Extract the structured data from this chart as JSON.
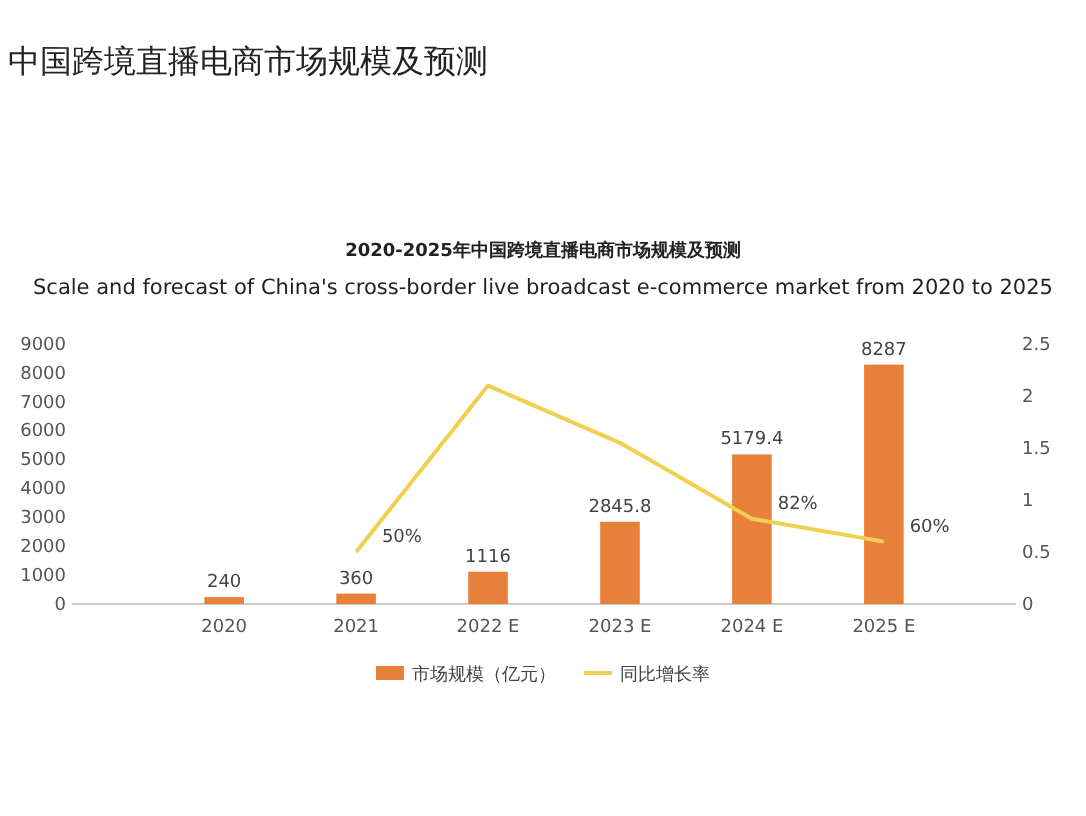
{
  "chart_data": {
    "type": "bar",
    "title": "中国跨境直播电商市场规模及预测",
    "subtitle": "2020-2025年中国跨境直播电商市场规模及预测\nScale and forecast of China's cross-border live broadcast e-commerce market from 2020 to 2025",
    "categories": [
      "2020",
      "2021",
      "2022 E",
      "2023 E",
      "2024 E",
      "2025 E"
    ],
    "series": [
      {
        "name": "市场规模（亿元）",
        "color": "#e8803a",
        "values": [
          240,
          360,
          1116,
          2845.8,
          5179.4,
          8287
        ],
        "data_labels": true
      },
      {
        "name": "同比增长率",
        "type": "line",
        "axis": "y2",
        "color": "#f0d050",
        "values": [
          null,
          0.5,
          2.1,
          1.55,
          0.82,
          0.6
        ],
        "value_labels": [
          null,
          "50%",
          null,
          null,
          "82%",
          "60%"
        ]
      }
    ],
    "ylim": [
      0,
      9000
    ],
    "yticks": [
      0,
      1000,
      2000,
      3000,
      4000,
      5000,
      6000,
      7000,
      8000,
      9000
    ],
    "y2lim": [
      0,
      2.5
    ],
    "y2ticks": [
      0,
      0.5,
      1,
      1.5,
      2,
      2.5
    ],
    "grid": false,
    "legend": "bottom",
    "marker": "none"
  }
}
